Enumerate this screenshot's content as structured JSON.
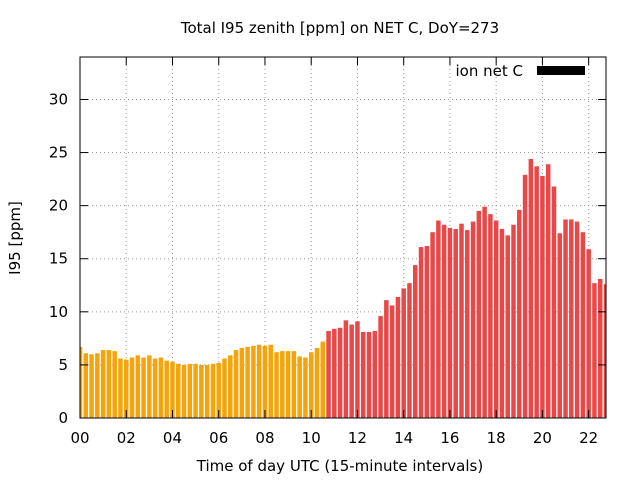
{
  "chart_data": {
    "type": "bar",
    "title": "Total I95 zenith [ppm] on NET C, DoY=273",
    "xlabel": "Time of day UTC (15-minute intervals)",
    "ylabel": "I95 [ppm]",
    "xlim": [
      0,
      22.75
    ],
    "ylim": [
      0,
      34
    ],
    "x_ticks": [
      "00",
      "02",
      "04",
      "06",
      "08",
      "10",
      "12",
      "14",
      "16",
      "18",
      "20",
      "22"
    ],
    "y_ticks": [
      0,
      5,
      10,
      15,
      20,
      25,
      30
    ],
    "grid": true,
    "legend": {
      "label": "ion net C",
      "color": "#000000",
      "placement": "top-right"
    },
    "interval_hours": 0.25,
    "colors": {
      "before_threshold": "#f5a40c",
      "after_threshold": "#e84848"
    },
    "color_change_hour": 10.75,
    "values": [
      6.7,
      6.1,
      6.0,
      6.1,
      6.4,
      6.4,
      6.3,
      5.6,
      5.5,
      5.7,
      5.9,
      5.7,
      5.9,
      5.6,
      5.7,
      5.4,
      5.3,
      5.1,
      5.0,
      5.1,
      5.1,
      5.0,
      5.0,
      5.1,
      5.2,
      5.6,
      5.9,
      6.4,
      6.6,
      6.7,
      6.8,
      6.9,
      6.8,
      6.9,
      6.2,
      6.3,
      6.3,
      6.3,
      5.8,
      5.7,
      6.2,
      6.6,
      7.2,
      8.2,
      8.4,
      8.5,
      9.2,
      8.8,
      9.1,
      8.1,
      8.1,
      8.2,
      9.6,
      11.1,
      10.6,
      11.4,
      12.2,
      12.7,
      14.4,
      16.1,
      16.2,
      17.5,
      18.6,
      18.2,
      17.9,
      17.8,
      18.3,
      17.7,
      18.5,
      19.5,
      19.9,
      19.2,
      18.6,
      17.8,
      17.2,
      18.2,
      19.6,
      22.9,
      24.4,
      23.7,
      22.8,
      23.9,
      21.8,
      17.4,
      18.7,
      18.7,
      18.5,
      17.5,
      15.9,
      12.7,
      13.1,
      12.6
    ]
  }
}
